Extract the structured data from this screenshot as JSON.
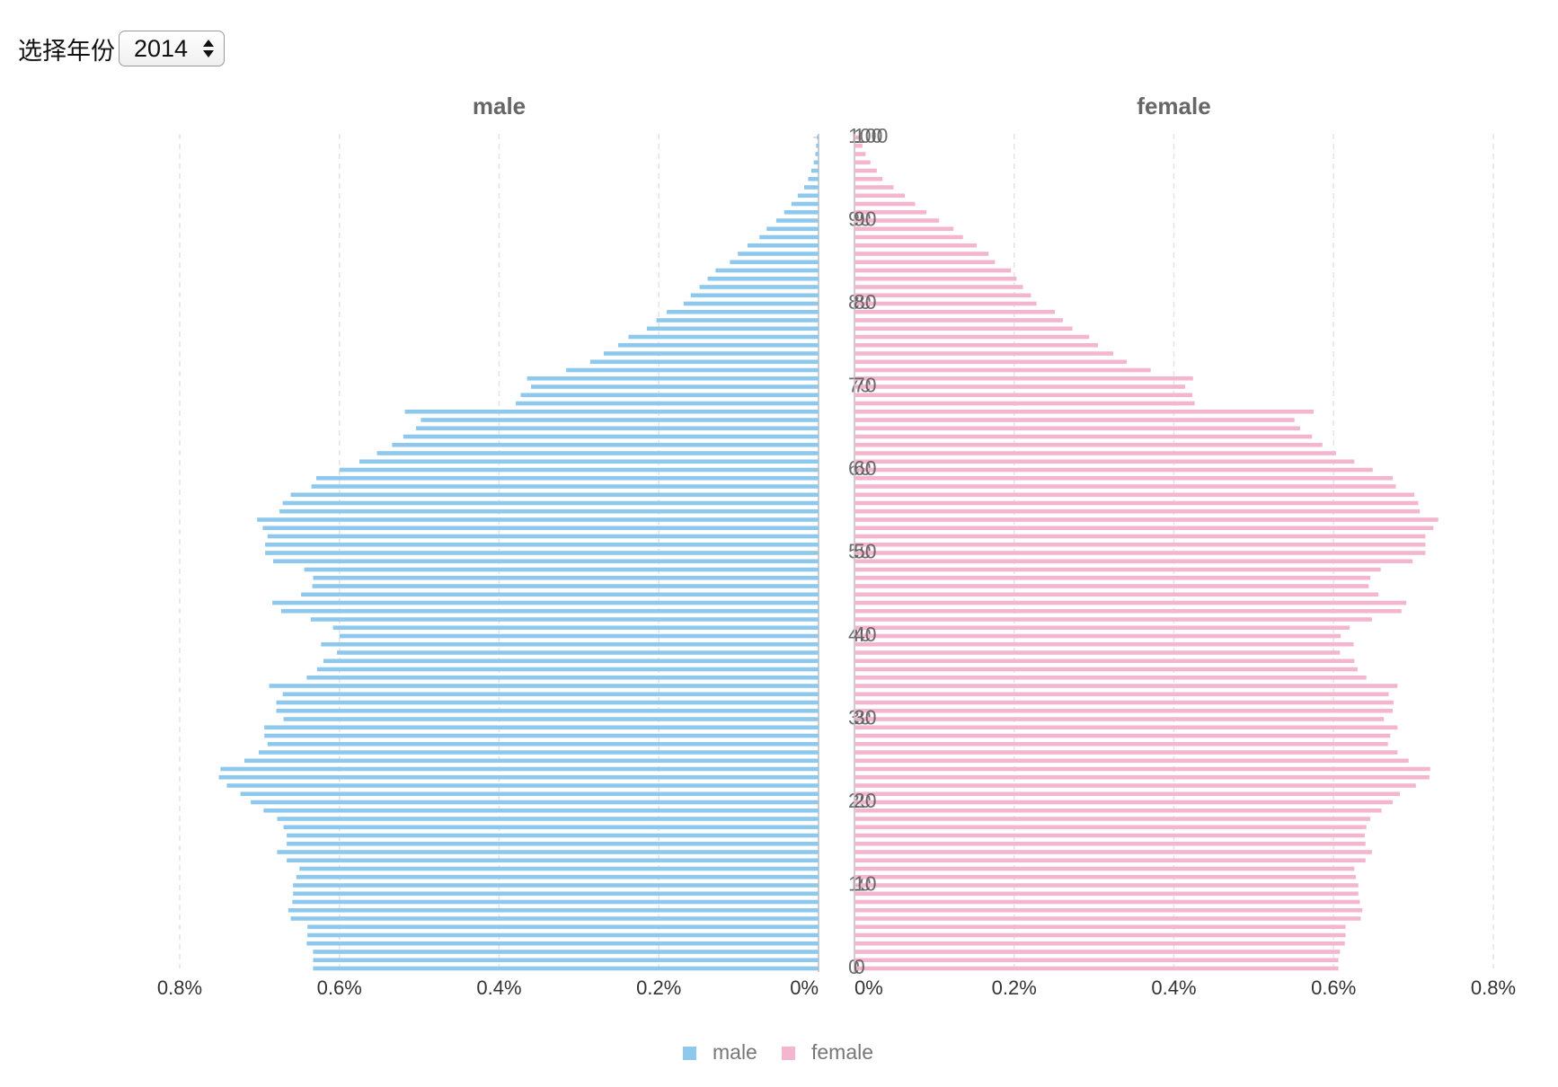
{
  "select_label": "选择年份",
  "selected_year": "2014",
  "chart_data": [
    {
      "type": "bar",
      "orientation": "horizontal",
      "x_inverse": true,
      "title": "male",
      "y": [
        0,
        1,
        2,
        3,
        4,
        5,
        6,
        7,
        8,
        9,
        10,
        11,
        12,
        13,
        14,
        15,
        16,
        17,
        18,
        19,
        20,
        21,
        22,
        23,
        24,
        25,
        26,
        27,
        28,
        29,
        30,
        31,
        32,
        33,
        34,
        35,
        36,
        37,
        38,
        39,
        40,
        41,
        42,
        43,
        44,
        45,
        46,
        47,
        48,
        49,
        50,
        51,
        52,
        53,
        54,
        55,
        56,
        57,
        58,
        59,
        60,
        61,
        62,
        63,
        64,
        65,
        66,
        67,
        68,
        69,
        70,
        71,
        72,
        73,
        74,
        75,
        76,
        77,
        78,
        79,
        80,
        81,
        82,
        83,
        84,
        85,
        86,
        87,
        88,
        89,
        90,
        91,
        92,
        93,
        94,
        95,
        96,
        97,
        98,
        99,
        100
      ],
      "series": [
        {
          "name": "male",
          "color": "#8ec8ec",
          "values": [
            0.633,
            0.633,
            0.633,
            0.641,
            0.64,
            0.64,
            0.661,
            0.664,
            0.659,
            0.658,
            0.658,
            0.654,
            0.65,
            0.666,
            0.678,
            0.666,
            0.666,
            0.67,
            0.678,
            0.695,
            0.711,
            0.724,
            0.741,
            0.751,
            0.749,
            0.719,
            0.701,
            0.69,
            0.694,
            0.694,
            0.67,
            0.679,
            0.679,
            0.671,
            0.688,
            0.641,
            0.628,
            0.62,
            0.603,
            0.623,
            0.6,
            0.608,
            0.636,
            0.673,
            0.684,
            0.648,
            0.634,
            0.633,
            0.644,
            0.683,
            0.693,
            0.693,
            0.69,
            0.696,
            0.703,
            0.675,
            0.671,
            0.661,
            0.635,
            0.629,
            0.6,
            0.575,
            0.553,
            0.534,
            0.52,
            0.504,
            0.498,
            0.518,
            0.379,
            0.373,
            0.36,
            0.365,
            0.316,
            0.286,
            0.269,
            0.251,
            0.238,
            0.215,
            0.203,
            0.19,
            0.169,
            0.16,
            0.149,
            0.139,
            0.129,
            0.111,
            0.101,
            0.089,
            0.074,
            0.065,
            0.053,
            0.043,
            0.034,
            0.026,
            0.018,
            0.013,
            0.009,
            0.006,
            0.004,
            0.003,
            0.002
          ]
        }
      ],
      "xlim": [
        0,
        0.8
      ],
      "xticks": [
        {
          "value": 0,
          "label": "0%"
        },
        {
          "value": 0.2,
          "label": "0.2%"
        },
        {
          "value": 0.4,
          "label": "0.4%"
        },
        {
          "value": 0.6,
          "label": "0.6%"
        },
        {
          "value": 0.8,
          "label": "0.8%"
        }
      ],
      "ylim": [
        0,
        100
      ],
      "yticks": [
        0,
        10,
        20,
        30,
        40,
        50,
        60,
        70,
        80,
        90,
        100
      ],
      "grid": true
    },
    {
      "type": "bar",
      "orientation": "horizontal",
      "x_inverse": false,
      "title": "female",
      "y": [
        0,
        1,
        2,
        3,
        4,
        5,
        6,
        7,
        8,
        9,
        10,
        11,
        12,
        13,
        14,
        15,
        16,
        17,
        18,
        19,
        20,
        21,
        22,
        23,
        24,
        25,
        26,
        27,
        28,
        29,
        30,
        31,
        32,
        33,
        34,
        35,
        36,
        37,
        38,
        39,
        40,
        41,
        42,
        43,
        44,
        45,
        46,
        47,
        48,
        49,
        50,
        51,
        52,
        53,
        54,
        55,
        56,
        57,
        58,
        59,
        60,
        61,
        62,
        63,
        64,
        65,
        66,
        67,
        68,
        69,
        70,
        71,
        72,
        73,
        74,
        75,
        76,
        77,
        78,
        79,
        80,
        81,
        82,
        83,
        84,
        85,
        86,
        87,
        88,
        89,
        90,
        91,
        92,
        93,
        94,
        95,
        96,
        97,
        98,
        99,
        100
      ],
      "series": [
        {
          "name": "female",
          "color": "#f4b6cf",
          "values": [
            0.606,
            0.606,
            0.608,
            0.614,
            0.615,
            0.615,
            0.634,
            0.636,
            0.633,
            0.631,
            0.631,
            0.628,
            0.626,
            0.64,
            0.648,
            0.64,
            0.639,
            0.641,
            0.646,
            0.66,
            0.674,
            0.683,
            0.703,
            0.72,
            0.721,
            0.694,
            0.68,
            0.668,
            0.671,
            0.68,
            0.663,
            0.674,
            0.675,
            0.669,
            0.68,
            0.641,
            0.63,
            0.626,
            0.608,
            0.625,
            0.609,
            0.62,
            0.648,
            0.685,
            0.691,
            0.656,
            0.644,
            0.646,
            0.659,
            0.699,
            0.715,
            0.715,
            0.715,
            0.725,
            0.731,
            0.708,
            0.706,
            0.701,
            0.678,
            0.674,
            0.649,
            0.626,
            0.603,
            0.586,
            0.573,
            0.558,
            0.551,
            0.575,
            0.426,
            0.423,
            0.414,
            0.424,
            0.371,
            0.341,
            0.324,
            0.305,
            0.294,
            0.273,
            0.261,
            0.251,
            0.228,
            0.221,
            0.211,
            0.203,
            0.196,
            0.176,
            0.168,
            0.153,
            0.136,
            0.124,
            0.106,
            0.09,
            0.076,
            0.063,
            0.049,
            0.035,
            0.028,
            0.02,
            0.014,
            0.01,
            0.008
          ]
        }
      ],
      "xlim": [
        0,
        0.8
      ],
      "xticks": [
        {
          "value": 0,
          "label": "0%"
        },
        {
          "value": 0.2,
          "label": "0.2%"
        },
        {
          "value": 0.4,
          "label": "0.4%"
        },
        {
          "value": 0.6,
          "label": "0.6%"
        },
        {
          "value": 0.8,
          "label": "0.8%"
        }
      ],
      "ylim": [
        0,
        100
      ],
      "yticks": [
        0,
        10,
        20,
        30,
        40,
        50,
        60,
        70,
        80,
        90,
        100
      ],
      "grid": true
    }
  ]
}
